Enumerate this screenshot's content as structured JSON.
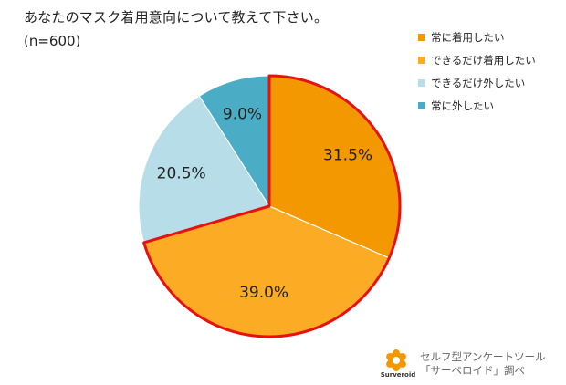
{
  "title": "あなたのマスク着用意向について教えて下さい。",
  "subtitle": "(n=600)",
  "chart_data": {
    "type": "pie",
    "title": "あなたのマスク着用意向について教えて下さい。",
    "n_label": "(n=600)",
    "start_angle_deg": 0,
    "direction": "clockwise",
    "slices": [
      {
        "label": "常に着用したい",
        "value": 31.5,
        "display": "31.5%",
        "color": "#F39800"
      },
      {
        "label": "できるだけ着用したい",
        "value": 39.0,
        "display": "39.0%",
        "color": "#FBAB24"
      },
      {
        "label": "できるだけ外したい",
        "value": 20.5,
        "display": "20.5%",
        "color": "#B7DDE8"
      },
      {
        "label": "常に外したい",
        "value": 9.0,
        "display": "9.0%",
        "color": "#4BACC6"
      }
    ],
    "highlight_stroke": "#E8110F",
    "legend_position": "top-right"
  },
  "footer": {
    "brand": "Surveroid",
    "line1": "セルフ型アンケートツール",
    "line2": "「サーベロイド」調べ"
  },
  "colors": {
    "logo": "#F39800"
  }
}
